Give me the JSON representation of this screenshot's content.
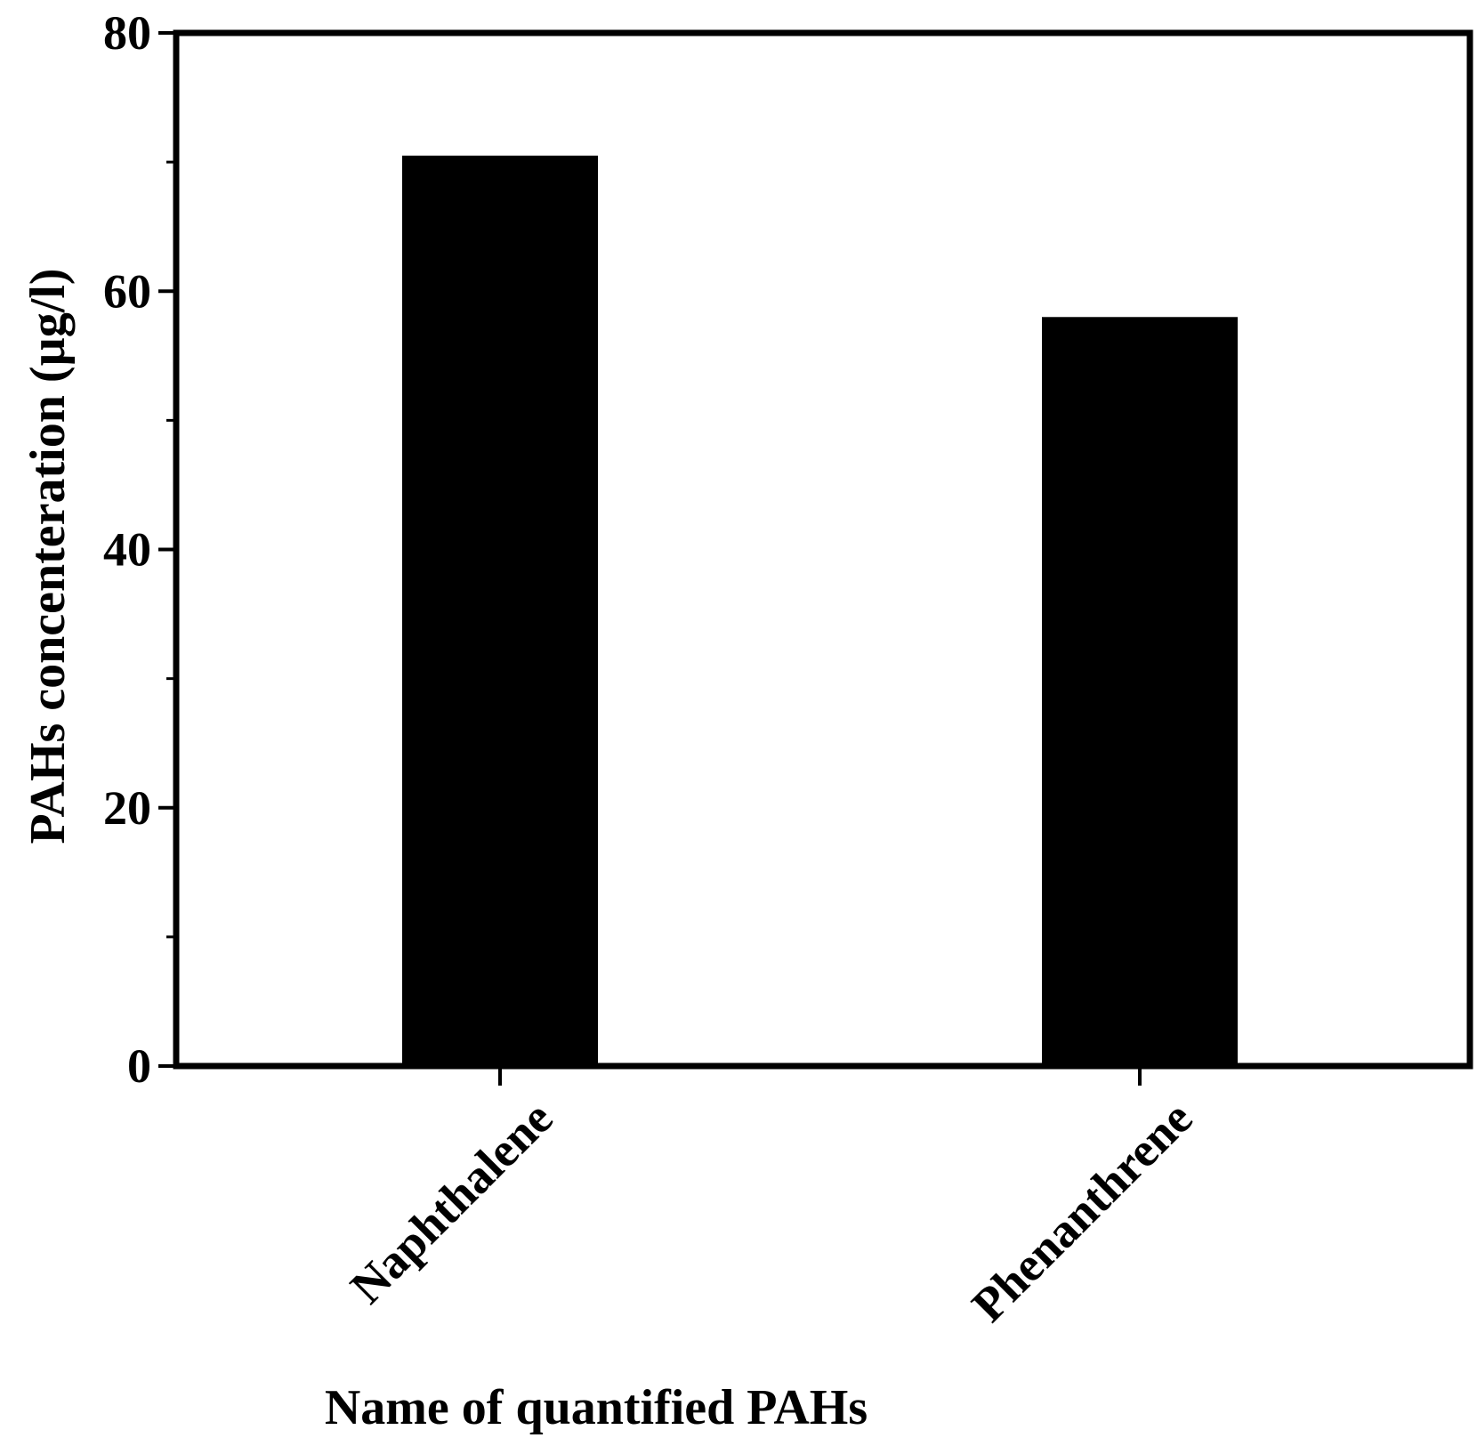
{
  "chart_data": {
    "type": "bar",
    "categories": [
      "Naphthalene",
      "Phenanthrene"
    ],
    "values": [
      70.5,
      58.0
    ],
    "title": "",
    "xlabel": "Name of quantified PAHs",
    "ylabel": "PAHs concenteration (µg/l)",
    "ylim": [
      0,
      80
    ],
    "yticks": [
      0,
      20,
      40,
      60,
      80
    ],
    "grid": false,
    "legend": "none",
    "bar_color": "#000000"
  }
}
